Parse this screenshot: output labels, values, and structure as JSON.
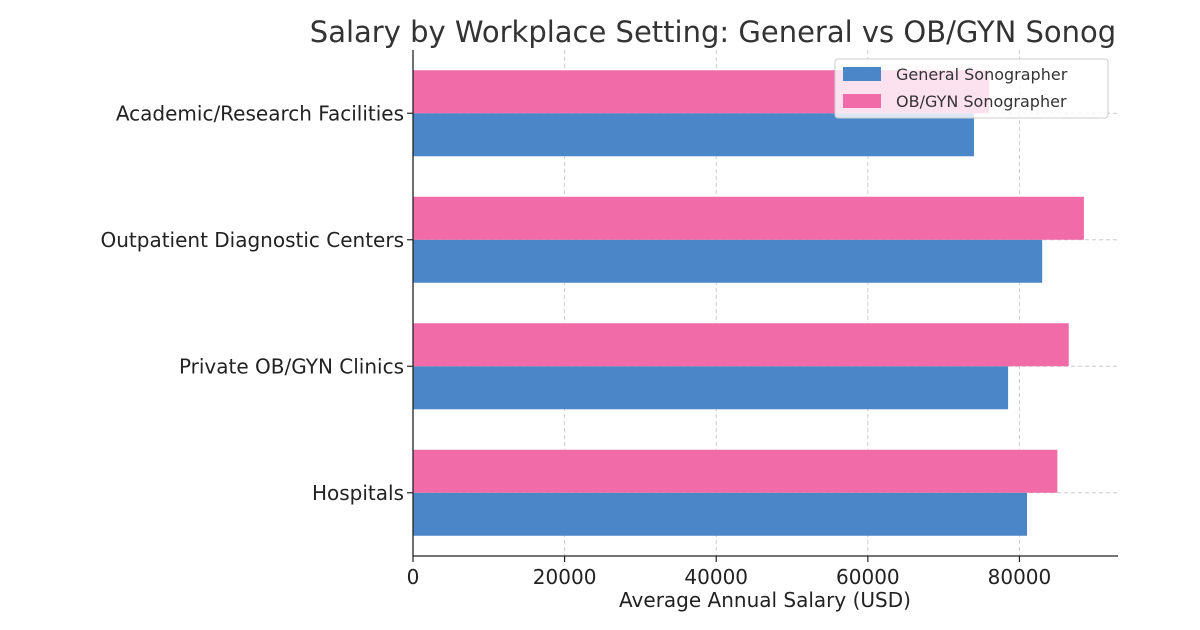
{
  "chart_data": {
    "type": "bar",
    "orientation": "horizontal",
    "title": "Salary by Workplace Setting: General vs OB/GYN Sonog",
    "xlabel": "Average Annual Salary (USD)",
    "ylabel": "",
    "categories": [
      "Hospitals",
      "Private OB/GYN Clinics",
      "Outpatient Diagnostic Centers",
      "Academic/Research Facilities"
    ],
    "series": [
      {
        "name": "General Sonographer",
        "values": [
          81000,
          78500,
          83000,
          74000
        ],
        "color": "#4a86c8"
      },
      {
        "name": "OB/GYN Sonographer",
        "values": [
          85000,
          86500,
          88500,
          76000
        ],
        "color": "#f06ba8"
      }
    ],
    "xlim": [
      0,
      93000
    ],
    "xticks": [
      0,
      20000,
      40000,
      60000,
      80000
    ],
    "grid": true,
    "legend_position": "top-right"
  }
}
